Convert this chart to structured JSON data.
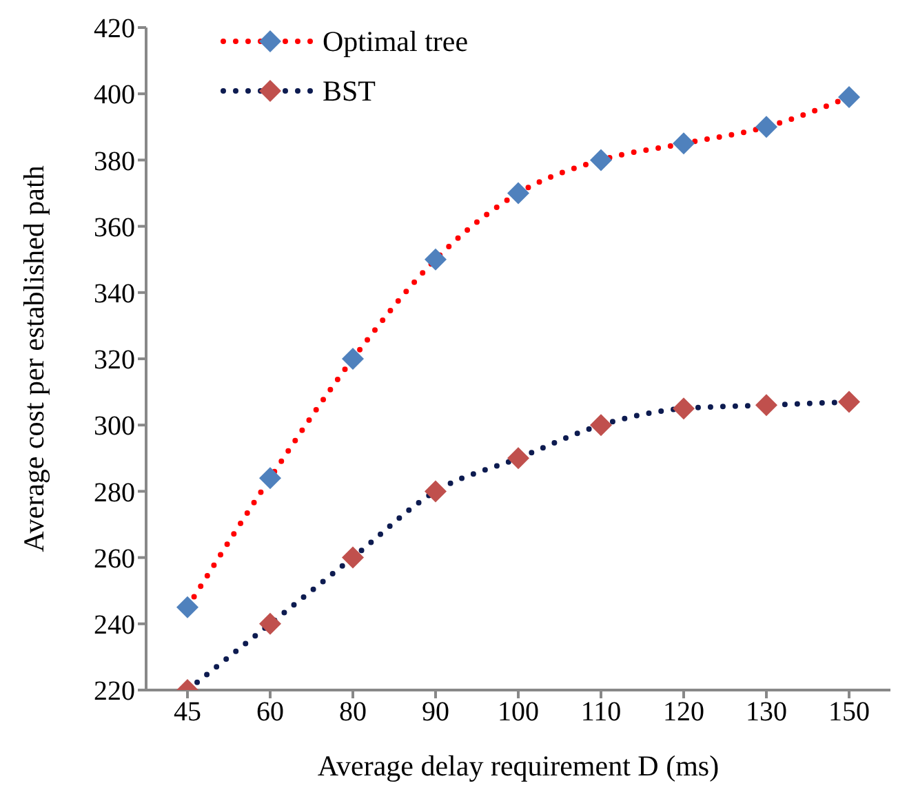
{
  "chart_data": {
    "type": "line",
    "xlabel": "Average delay requirement D (ms)",
    "ylabel": "Average cost per established path",
    "categories": [
      "45",
      "60",
      "80",
      "90",
      "100",
      "110",
      "120",
      "130",
      "150"
    ],
    "series": [
      {
        "name": "Optimal tree",
        "color": "#ff0000",
        "colors": [
          "#4f81bd",
          "#4f81bd",
          "#4f81bd",
          "#4f81bd",
          "#4f81bd",
          "#4f81bd",
          "#4f81bd",
          "#4f81bd",
          "#4f81bd"
        ],
        "values": [
          245,
          284,
          320,
          350,
          370,
          380,
          385,
          390,
          399
        ]
      },
      {
        "name": "BST",
        "color": "#0d1b50",
        "colors": [
          "#c0504d",
          "#c0504d",
          "#c0504d",
          "#c0504d",
          "#c0504d",
          "#c0504d",
          "#c0504d",
          "#c0504d",
          "#c0504d"
        ],
        "values": [
          220,
          240,
          260,
          280,
          290,
          300,
          305,
          306,
          307
        ]
      }
    ],
    "ylim": [
      220,
      420
    ],
    "yticks": [
      220,
      240,
      260,
      280,
      300,
      320,
      340,
      360,
      380,
      400,
      420
    ],
    "grid": false,
    "legend": "top left",
    "marker": "diamond",
    "line_style": "dotted"
  }
}
